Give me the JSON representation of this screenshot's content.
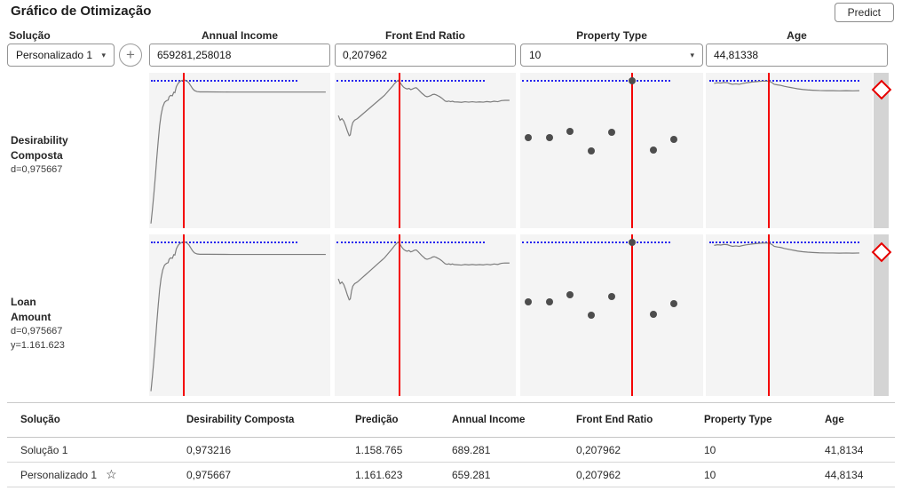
{
  "header": {
    "title": "Gráfico de Otimização",
    "predict_label": "Predict"
  },
  "controls": {
    "solution": {
      "label": "Solução",
      "selected": "Personalizado 1"
    },
    "fields": [
      {
        "label": "Annual Income",
        "value": "659281,258018",
        "type": "text"
      },
      {
        "label": "Front End Ratio",
        "value": "0,207962",
        "type": "text"
      },
      {
        "label": "Property Type",
        "value": "10",
        "type": "dropdown"
      },
      {
        "label": "Age",
        "value": "44,81338",
        "type": "text"
      }
    ]
  },
  "icons": {
    "caret": "▾",
    "plus": "+",
    "star": "☆"
  },
  "profile_rows": [
    {
      "title": "Desirability Composta",
      "lines": [
        "d=0,975667"
      ]
    },
    {
      "title": "Loan Amount",
      "lines": [
        "d=0,975667",
        "y=1.161.623"
      ]
    }
  ],
  "chart_data": {
    "type": "line",
    "note": "Optimization profile grid: 4 predictor panels shown twice (Desirability Composta row and Loan Amount row) with identical curve shapes; red vertical line = current predictor value, blue dotted line = optimum reference level, x/y in percent of panel (y measured from top).",
    "panels": [
      {
        "variable": "Annual Income",
        "kind": "line",
        "red_line_x_pct": 19,
        "blue_span_pct": [
          1,
          82
        ],
        "points": [
          [
            1,
            97
          ],
          [
            1.8,
            88
          ],
          [
            2.6,
            78
          ],
          [
            3.4,
            67
          ],
          [
            4.2,
            55
          ],
          [
            5,
            44
          ],
          [
            5.8,
            34
          ],
          [
            6.6,
            27
          ],
          [
            7.5,
            22
          ],
          [
            8.5,
            19
          ],
          [
            9.5,
            18
          ],
          [
            10.5,
            17.5
          ],
          [
            11,
            15.5
          ],
          [
            11.8,
            14.5
          ],
          [
            12.8,
            14.8
          ],
          [
            13.6,
            12.5
          ],
          [
            14.2,
            12.8
          ],
          [
            15,
            9
          ],
          [
            16,
            6.8
          ],
          [
            17,
            5.6
          ],
          [
            18,
            5
          ],
          [
            19,
            4.7
          ],
          [
            20,
            4.8
          ],
          [
            21,
            5.4
          ],
          [
            22,
            6.6
          ],
          [
            23,
            8.4
          ],
          [
            24,
            10.2
          ],
          [
            25,
            11.4
          ],
          [
            26.5,
            12.1
          ],
          [
            28,
            12.3
          ],
          [
            32,
            12.3
          ],
          [
            45,
            12.4
          ],
          [
            60,
            12.4
          ],
          [
            80,
            12.4
          ],
          [
            97.5,
            12.4
          ]
        ]
      },
      {
        "variable": "Front End Ratio",
        "kind": "line",
        "red_line_x_pct": 36,
        "blue_span_pct": [
          1,
          83
        ],
        "points": [
          [
            2,
            27.5
          ],
          [
            3,
            30.5
          ],
          [
            4,
            29.5
          ],
          [
            5,
            31
          ],
          [
            6,
            34
          ],
          [
            7,
            37.5
          ],
          [
            8,
            40.5
          ],
          [
            8.6,
            40
          ],
          [
            9.3,
            35
          ],
          [
            10,
            32
          ],
          [
            11,
            30.5
          ],
          [
            12.5,
            29.5
          ],
          [
            14,
            28
          ],
          [
            15.5,
            26.5
          ],
          [
            17,
            25
          ],
          [
            18.5,
            23.5
          ],
          [
            20,
            22
          ],
          [
            21.5,
            20.5
          ],
          [
            23,
            19
          ],
          [
            24.5,
            17.5
          ],
          [
            26,
            16
          ],
          [
            27.5,
            14.5
          ],
          [
            29,
            12.5
          ],
          [
            30.5,
            10.5
          ],
          [
            32,
            8.5
          ],
          [
            33,
            7
          ],
          [
            34,
            5.8
          ],
          [
            35,
            4.8
          ],
          [
            36,
            6
          ],
          [
            37,
            7.8
          ],
          [
            38,
            9.2
          ],
          [
            39,
            10
          ],
          [
            40,
            10.4
          ],
          [
            41,
            10
          ],
          [
            42,
            10.8
          ],
          [
            43,
            10.4
          ],
          [
            44,
            9.8
          ],
          [
            45,
            9.6
          ],
          [
            46,
            10.6
          ],
          [
            47,
            11.8
          ],
          [
            48,
            13
          ],
          [
            49,
            14
          ],
          [
            50,
            15
          ],
          [
            51,
            15.4
          ],
          [
            52,
            15.1
          ],
          [
            53,
            14.7
          ],
          [
            54,
            14
          ],
          [
            55,
            13.8
          ],
          [
            56,
            14.2
          ],
          [
            57,
            14.8
          ],
          [
            58,
            15.4
          ],
          [
            59,
            16.2
          ],
          [
            60,
            17.2
          ],
          [
            61,
            18.2
          ],
          [
            62,
            18.5
          ],
          [
            63,
            18.2
          ],
          [
            64,
            18.6
          ],
          [
            65,
            18.3
          ],
          [
            66,
            18.7
          ],
          [
            68,
            18.8
          ],
          [
            70,
            19
          ],
          [
            72,
            18.6
          ],
          [
            74,
            18.9
          ],
          [
            76,
            18.6
          ],
          [
            78,
            18.9
          ],
          [
            80,
            18.7
          ],
          [
            82,
            18.9
          ],
          [
            84,
            18.5
          ],
          [
            86,
            18.8
          ],
          [
            88,
            18.3
          ],
          [
            90,
            18.6
          ],
          [
            92,
            17.9
          ],
          [
            94,
            17.7
          ],
          [
            96.5,
            17.7
          ]
        ]
      },
      {
        "variable": "Property Type",
        "kind": "scatter",
        "red_line_x_pct": 61,
        "blue_span_pct": [
          1,
          82
        ],
        "points": [
          [
            4.5,
            41.5
          ],
          [
            16,
            41.8
          ],
          [
            27,
            37.5
          ],
          [
            39,
            50
          ],
          [
            50,
            38.5
          ],
          [
            61,
            5
          ],
          [
            73,
            49.5
          ],
          [
            84,
            43
          ]
        ]
      },
      {
        "variable": "Age",
        "kind": "line",
        "red_line_x_pct": 38,
        "blue_span_pct": [
          2,
          92
        ],
        "points": [
          [
            5,
            6.8
          ],
          [
            7,
            6.4
          ],
          [
            9,
            6.6
          ],
          [
            11,
            6.2
          ],
          [
            13,
            6.4
          ],
          [
            14.5,
            7
          ],
          [
            16,
            7.4
          ],
          [
            18,
            7.1
          ],
          [
            20,
            7.4
          ],
          [
            22,
            6.9
          ],
          [
            24,
            6.5
          ],
          [
            26,
            6.2
          ],
          [
            28,
            5.9
          ],
          [
            30,
            5.7
          ],
          [
            32,
            5.5
          ],
          [
            34,
            5.4
          ],
          [
            36,
            5.3
          ],
          [
            38,
            5.4
          ],
          [
            39.5,
            6.2
          ],
          [
            41,
            7.4
          ],
          [
            43,
            7.8
          ],
          [
            45,
            8.1
          ],
          [
            47,
            8.7
          ],
          [
            49,
            9.1
          ],
          [
            51,
            9.5
          ],
          [
            53,
            9.9
          ],
          [
            55,
            10.3
          ],
          [
            58,
            10.7
          ],
          [
            61,
            11
          ],
          [
            64,
            11.2
          ],
          [
            68,
            11.4
          ],
          [
            72,
            11.5
          ],
          [
            76,
            11.5
          ],
          [
            80,
            11.6
          ],
          [
            84,
            11.5
          ],
          [
            88,
            11.6
          ],
          [
            92,
            11.5
          ]
        ]
      }
    ],
    "blue_reference_y_pct": 4.5
  },
  "table": {
    "columns": [
      "Solução",
      "Desirability Composta",
      "Predição",
      "Annual Income",
      "Front End Ratio",
      "Property Type",
      "Age"
    ],
    "rows": [
      {
        "cells": [
          "Solução 1",
          "0,973216",
          "1.158.765",
          "689.281",
          "0,207962",
          "10",
          "41,8134"
        ],
        "starred": false
      },
      {
        "cells": [
          "Personalizado 1",
          "0,975667",
          "1.161.623",
          "659.281",
          "0,207962",
          "10",
          "44,8134"
        ],
        "starred": true
      }
    ]
  },
  "colors": {
    "accent_red": "#f40000",
    "reference_blue": "#2323ef",
    "curve_gray": "#7d7d7d",
    "dot_gray": "#4d4d4d",
    "chart_bg": "#f4f4f4",
    "scale_strip": "#d4d4d4",
    "diamond_red": "#e60000"
  }
}
